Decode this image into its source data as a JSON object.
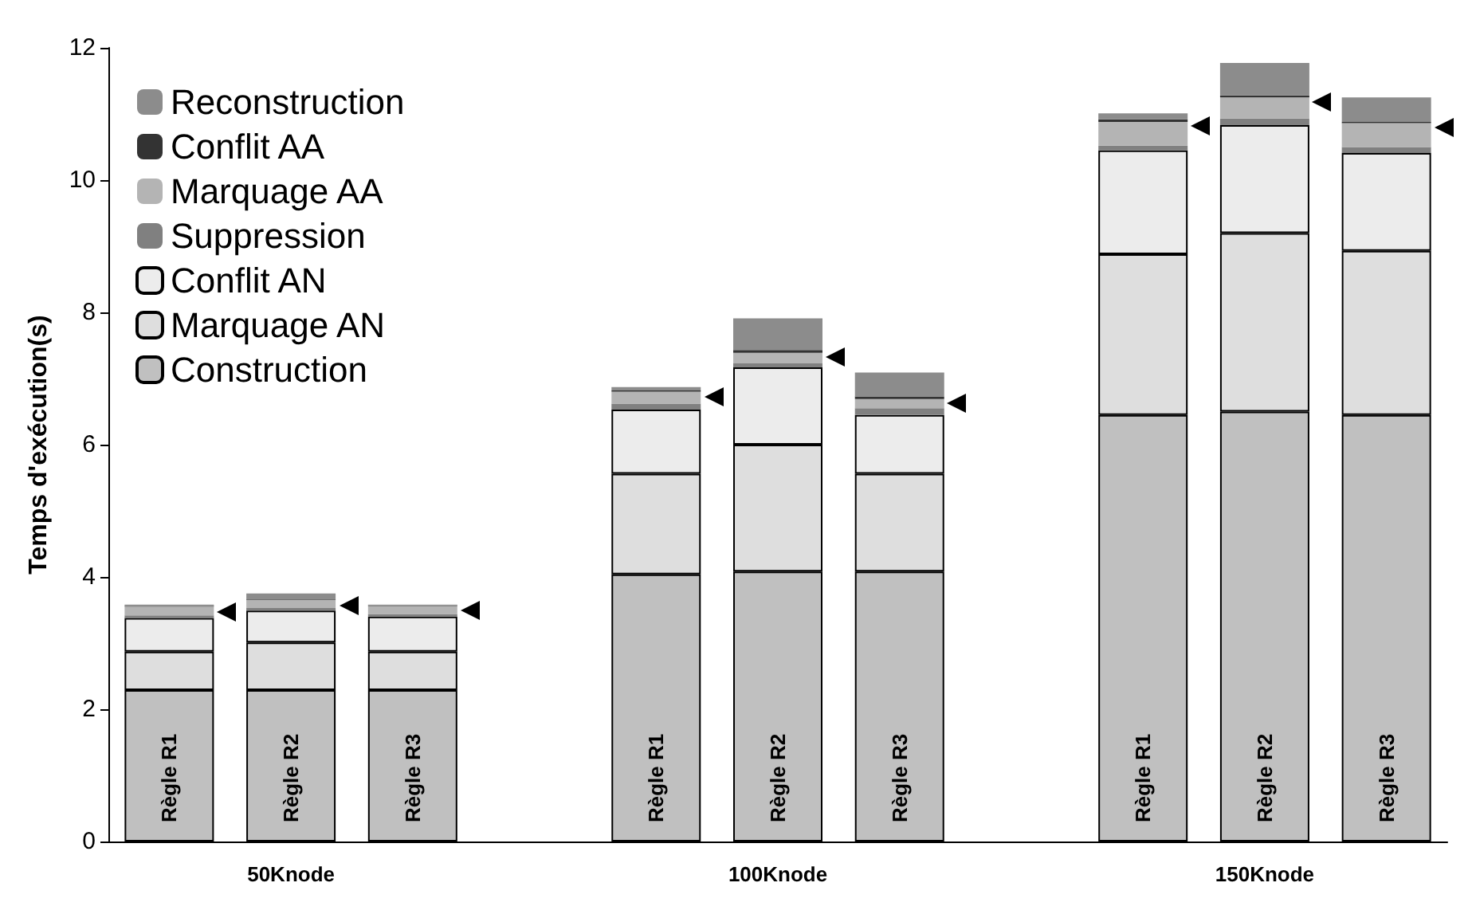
{
  "chart_data": {
    "type": "bar",
    "stacked": true,
    "ylabel": "Temps d'exécution(s)",
    "categories": [
      "Règle R1",
      "Règle R2",
      "Règle R3",
      null,
      "Règle R1",
      "Règle R2",
      "Règle R3",
      null,
      "Règle R1",
      "Règle R2",
      "Règle R3"
    ],
    "series": [
      {
        "name": "Construction",
        "color": "#c0c0c0",
        "values": [
          2.29,
          2.29,
          2.29,
          null,
          4.04,
          4.08,
          4.08,
          null,
          6.45,
          6.5,
          6.45
        ]
      },
      {
        "name": "Marquage AN",
        "color": "#dedede",
        "values": [
          0.58,
          0.72,
          0.58,
          null,
          1.52,
          1.92,
          1.48,
          null,
          2.43,
          2.7,
          2.48
        ]
      },
      {
        "name": "Conflit AN",
        "color": "#ececec",
        "values": [
          0.51,
          0.48,
          0.53,
          null,
          0.97,
          1.17,
          0.89,
          null,
          1.57,
          1.63,
          1.48
        ]
      },
      {
        "name": "Suppression",
        "color": "#808080",
        "values": [
          0.04,
          0.04,
          0.04,
          null,
          0.09,
          0.06,
          0.1,
          null,
          0.07,
          0.1,
          0.09
        ]
      },
      {
        "name": "Marquage AA",
        "color": "#b4b4b4",
        "values": [
          0.13,
          0.12,
          0.12,
          null,
          0.18,
          0.16,
          0.14,
          null,
          0.36,
          0.32,
          0.36
        ]
      },
      {
        "name": "Conflit AA",
        "color": "#333333",
        "values": [
          0.01,
          0.01,
          0.01,
          null,
          0.02,
          0.04,
          0.04,
          null,
          0.04,
          0.03,
          0.02
        ]
      },
      {
        "name": "Reconstruction",
        "color": "#8c8c8c",
        "values": [
          0.02,
          0.09,
          0.01,
          null,
          0.05,
          0.48,
          0.36,
          null,
          0.09,
          0.49,
          0.37
        ]
      }
    ],
    "ylim": [
      0,
      12
    ],
    "yticks": [
      0,
      2,
      4,
      6,
      8,
      10,
      12
    ],
    "legend": "top left",
    "annotations": [
      "50Knode",
      "100Knode",
      "150Knode"
    ]
  }
}
